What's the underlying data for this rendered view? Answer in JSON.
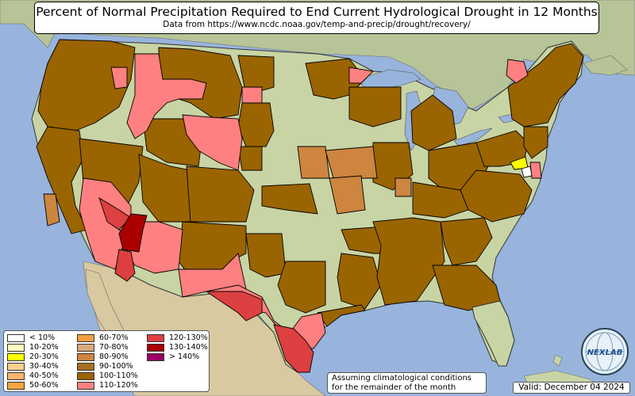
{
  "title": "Percent of Normal Precipitation Required to End Current Hydrological Drought in 12 Months",
  "subtitle": "Data from https://www.ncdc.noaa.gov/temp-and-precip/drought/recovery/",
  "legend": [
    {
      "label": "< 10%",
      "color": "#ffffff"
    },
    {
      "label": "10-20%",
      "color": "#ffffc0"
    },
    {
      "label": "20-30%",
      "color": "#ffff00"
    },
    {
      "label": "30-40%",
      "color": "#fed08e"
    },
    {
      "label": "40-50%",
      "color": "#fdb56b"
    },
    {
      "label": "50-60%",
      "color": "#f6a440"
    },
    {
      "label": "60-70%",
      "color": "#f0a040"
    },
    {
      "label": "70-80%",
      "color": "#d8aa7a"
    },
    {
      "label": "80-90%",
      "color": "#cd853f"
    },
    {
      "label": "90-100%",
      "color": "#a66e1e"
    },
    {
      "label": "100-110%",
      "color": "#9a6400"
    },
    {
      "label": "110-120%",
      "color": "#ff8080"
    },
    {
      "label": "120-130%",
      "color": "#dc4040"
    },
    {
      "label": "130-140%",
      "color": "#aa0000"
    },
    {
      "label": "> 140%",
      "color": "#990066"
    }
  ],
  "note": {
    "line1": "Assuming climatological conditions",
    "line2": "for the remainder of the month"
  },
  "valid": "Valid: December 04 2024",
  "logo": {
    "text": "NEXLAB",
    "icon": "globe-icon"
  },
  "colors": {
    "water": "#98b4dc",
    "land": "#c8d4a4",
    "mountain_land": "#b9ad88",
    "greenland": "#a9c48a",
    "desert": "#dccba0",
    "c100_110": "#9a6400",
    "c110_120": "#ff8080",
    "c120_130": "#dc4040",
    "c130_140": "#aa0000",
    "c80_90": "#cd853f",
    "c20_30": "#ffff00"
  }
}
